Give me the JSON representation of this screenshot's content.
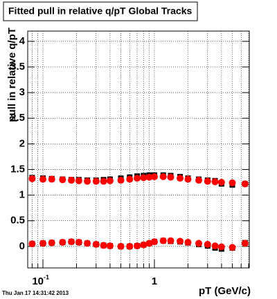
{
  "chart_data": {
    "type": "scatter",
    "title": "Fitted pull in relative q/pT  Global Tracks",
    "x_label": "pT (GeV/c)",
    "y_label": "pull in relative q/pT",
    "timestamp": "Thu Jan 17 14:31:42 2013",
    "log_x": true,
    "grid": true,
    "xlim": [
      0.073,
      7.1
    ],
    "ylim": [
      -0.42,
      4.2
    ],
    "xticks": [
      {
        "value": 0.1,
        "label": "10",
        "exponent": "-1"
      },
      1
    ],
    "xminor": [
      0.08,
      0.09,
      0.2,
      0.3,
      0.4,
      0.5,
      0.6,
      0.7,
      0.8,
      0.9,
      2,
      3,
      4,
      5,
      6,
      7
    ],
    "yticks": [
      0,
      0.5,
      1,
      1.5,
      2,
      2.5,
      3,
      3.5,
      4
    ],
    "x": [
      0.08,
      0.1,
      0.12,
      0.15,
      0.18,
      0.21,
      0.25,
      0.3,
      0.35,
      0.4,
      0.5,
      0.6,
      0.7,
      0.8,
      0.9,
      1.0,
      1.2,
      1.4,
      1.7,
      2.0,
      2.5,
      3.0,
      3.5,
      4.0,
      5.0,
      6.5
    ],
    "series": [
      {
        "color": "#000000",
        "marker": "square",
        "values": [
          1.34,
          1.33,
          1.32,
          1.31,
          1.3,
          1.3,
          1.29,
          1.29,
          1.3,
          1.31,
          1.33,
          1.35,
          1.37,
          1.38,
          1.39,
          1.39,
          1.39,
          1.38,
          1.36,
          1.33,
          1.31,
          1.29,
          1.28,
          1.22,
          1.2,
          1.22
        ]
      },
      {
        "color": "#000000",
        "marker": "square",
        "values": [
          0.05,
          0.06,
          0.07,
          0.08,
          0.09,
          0.08,
          0.06,
          0.04,
          0.02,
          0.01,
          0.0,
          0.0,
          0.01,
          0.03,
          0.06,
          0.09,
          0.11,
          0.1,
          0.09,
          0.07,
          0.04,
          0.01,
          -0.03,
          -0.05,
          -0.03,
          0.07
        ]
      },
      {
        "color": "#ff0000",
        "marker": "circle",
        "values": [
          1.32,
          1.31,
          1.31,
          1.3,
          1.29,
          1.28,
          1.27,
          1.27,
          1.27,
          1.28,
          1.29,
          1.31,
          1.33,
          1.34,
          1.35,
          1.36,
          1.36,
          1.35,
          1.33,
          1.31,
          1.29,
          1.27,
          1.26,
          1.25,
          1.24,
          1.22
        ]
      },
      {
        "color": "#ff0000",
        "marker": "circle",
        "values": [
          0.05,
          0.06,
          0.07,
          0.08,
          0.09,
          0.08,
          0.06,
          0.04,
          0.02,
          0.01,
          0.0,
          0.0,
          0.01,
          0.03,
          0.06,
          0.09,
          0.11,
          0.11,
          0.1,
          0.08,
          0.06,
          0.04,
          0.01,
          -0.01,
          -0.02,
          0.06
        ]
      }
    ]
  }
}
